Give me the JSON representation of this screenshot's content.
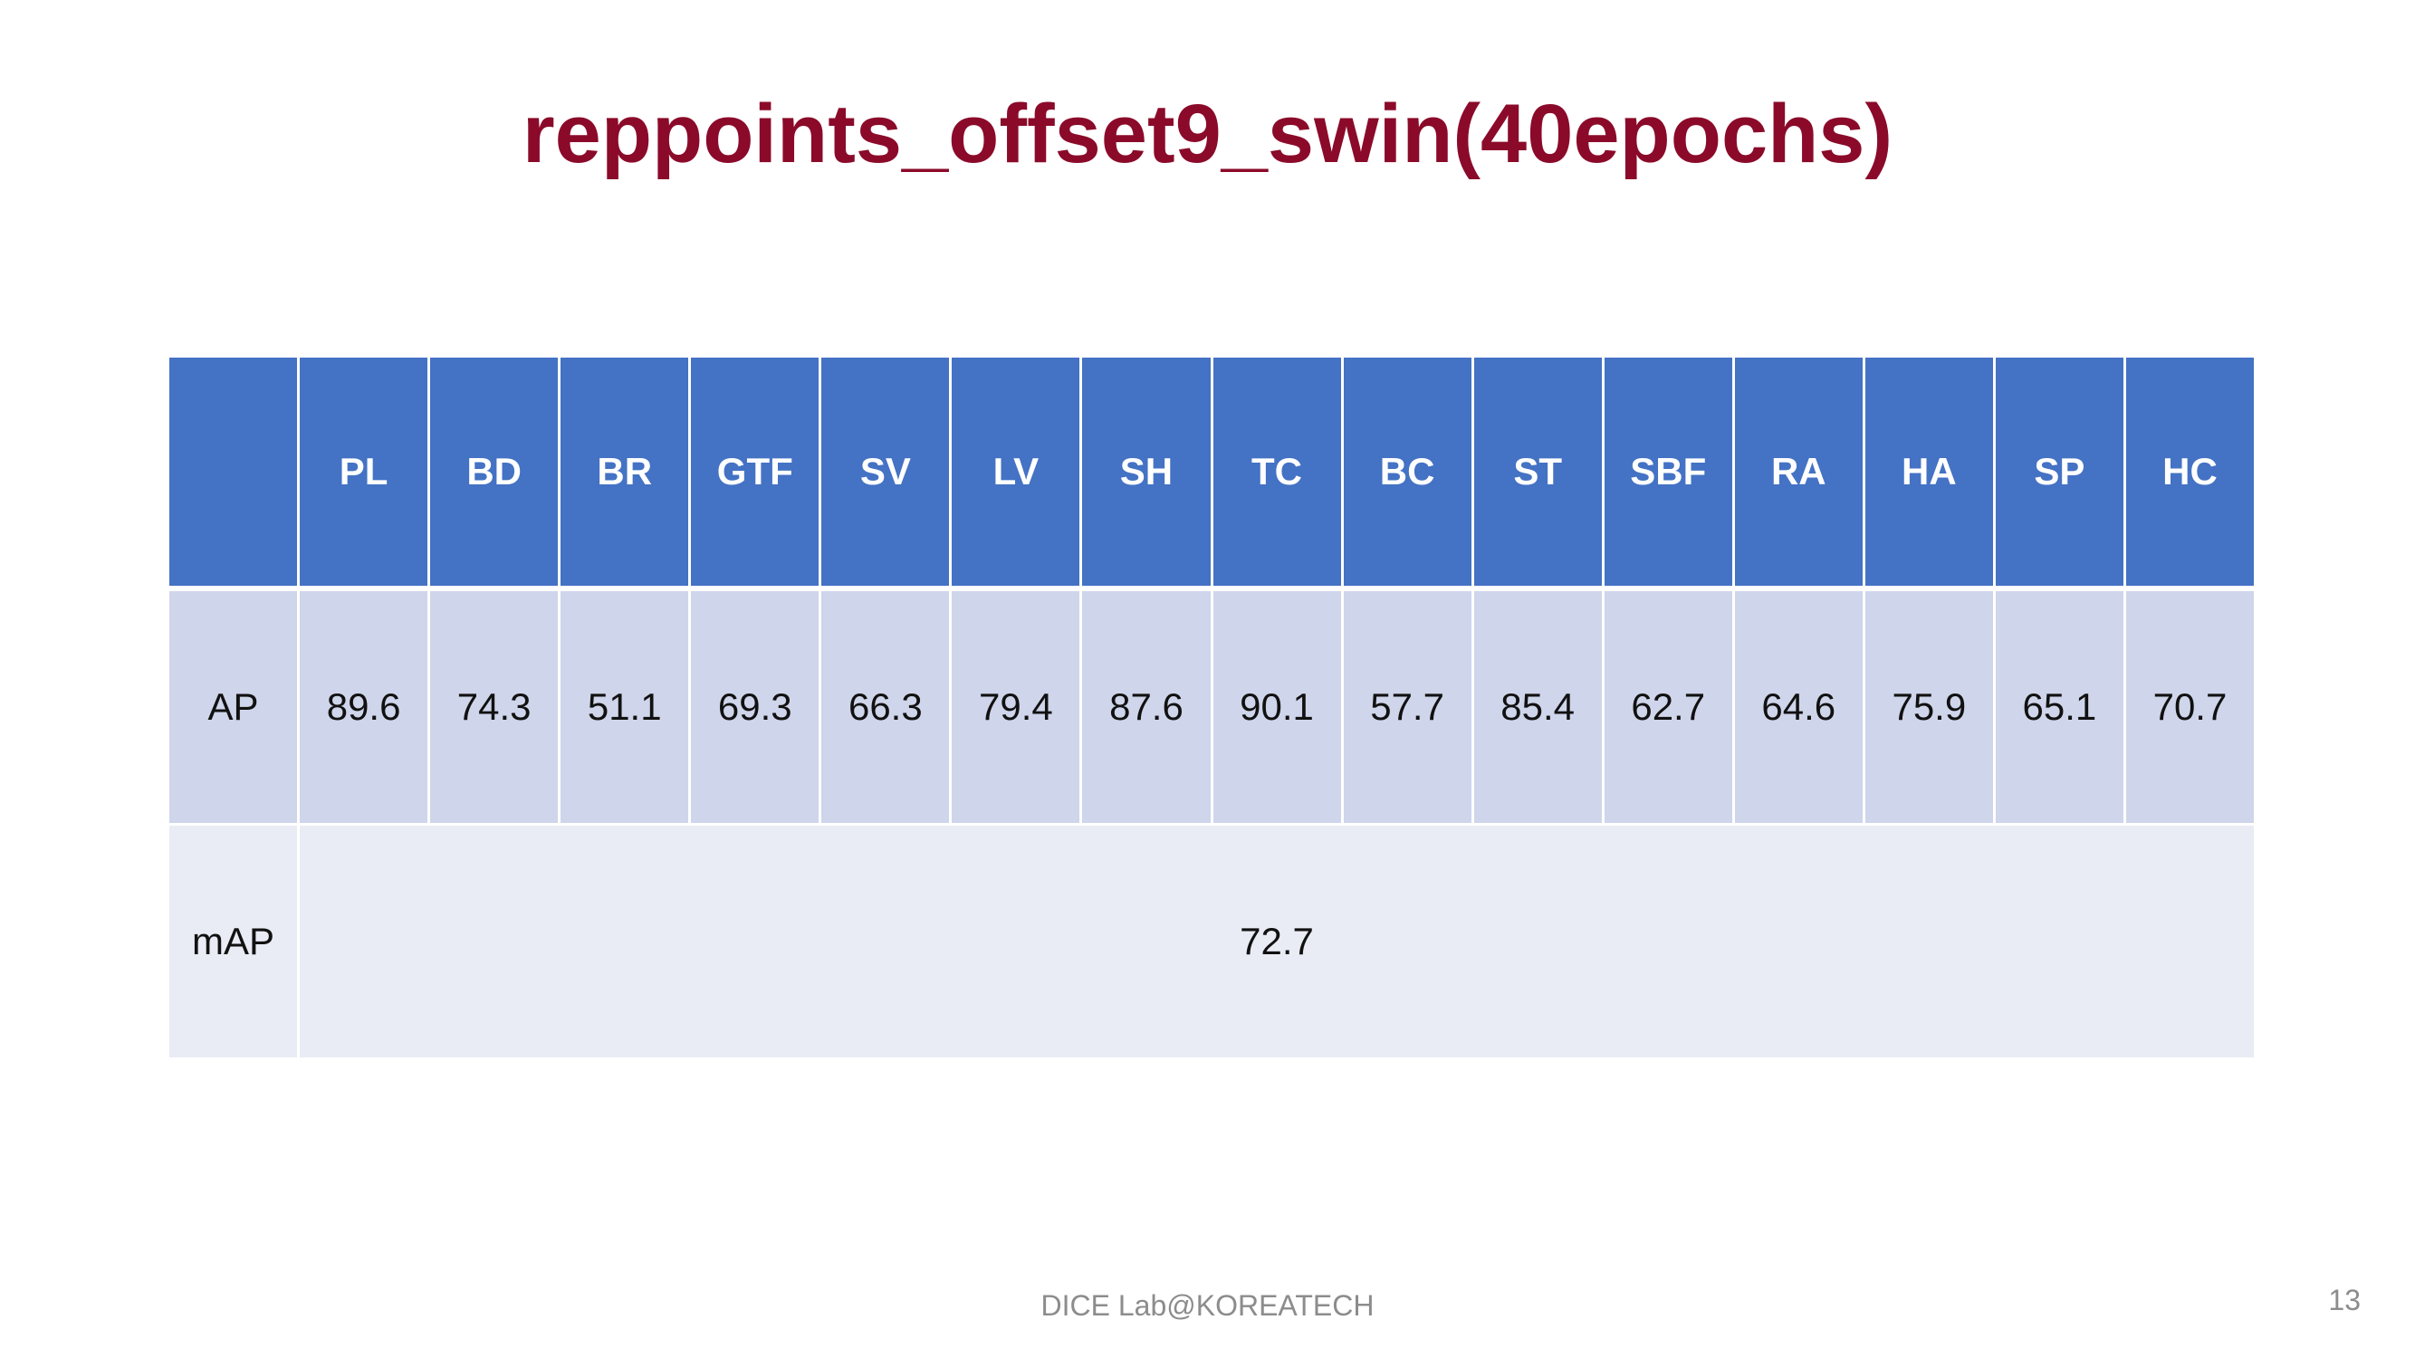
{
  "title": "reppoints_offset9_swin(40epochs)",
  "table": {
    "corner": "",
    "columns": [
      "PL",
      "BD",
      "BR",
      "GTF",
      "SV",
      "LV",
      "SH",
      "TC",
      "BC",
      "ST",
      "SBF",
      "RA",
      "HA",
      "SP",
      "HC"
    ],
    "ap_row": {
      "label": "AP",
      "values": [
        "89.6",
        "74.3",
        "51.1",
        "69.3",
        "66.3",
        "79.4",
        "87.6",
        "90.1",
        "57.7",
        "85.4",
        "62.7",
        "64.6",
        "75.9",
        "65.1",
        "70.7"
      ]
    },
    "map_row": {
      "label": "mAP",
      "value": "72.7"
    }
  },
  "footer": "DICE  Lab@KOREATECH",
  "page_number": "13",
  "colors": {
    "title": "#8b0a2a",
    "header_bg": "#4472c4",
    "ap_row_bg": "#cfd5ea",
    "map_row_bg": "#e9ebf5"
  }
}
